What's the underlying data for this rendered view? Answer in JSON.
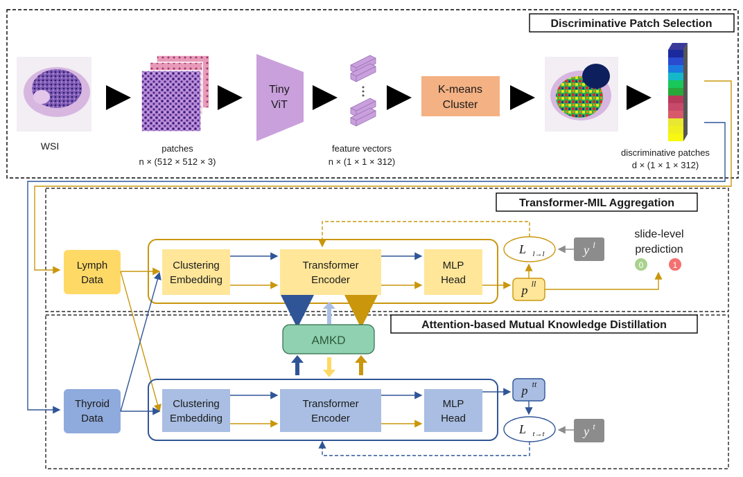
{
  "sections": {
    "patch_selection": "Discriminative Patch Selection",
    "transformer_mil": "Transformer-MIL Aggregation",
    "amkd_section": "Attention-based Mutual Knowledge Distillation"
  },
  "pipeline": {
    "wsi": "WSI",
    "patches": "patches",
    "patches_dim": "n × (512 × 512 × 3)",
    "tiny_vit_line1": "Tiny",
    "tiny_vit_line2": "ViT",
    "feature_vectors": "feature vectors",
    "feature_dim": "n × (1 × 1 × 312)",
    "kmeans_line1": "K-means",
    "kmeans_line2": "Cluster",
    "disc_patches": "discriminative patches",
    "disc_dim": "d × (1 × 1 × 312)"
  },
  "lymph": {
    "data_line1": "Lymph",
    "data_line2": "Data",
    "clustering_line1": "Clustering",
    "clustering_line2": "Embedding",
    "encoder_line1": "Transformer",
    "encoder_line2": "Encoder",
    "mlp_line1": "MLP",
    "mlp_line2": "Head",
    "pred": "p",
    "pred_sup": "ll",
    "loss": "L",
    "loss_sub": "l→l",
    "label": "y",
    "label_sup": "l"
  },
  "thyroid": {
    "data_line1": "Thyroid",
    "data_line2": "Data",
    "clustering_line1": "Clustering",
    "clustering_line2": "Embedding",
    "encoder_line1": "Transformer",
    "encoder_line2": "Encoder",
    "mlp_line1": "MLP",
    "mlp_line2": "Head",
    "pred": "p",
    "pred_sup": "tt",
    "loss": "L",
    "loss_sub": "t→t",
    "label": "y",
    "label_sup": "t"
  },
  "amkd": "AMKD",
  "prediction": {
    "line1": "slide-level",
    "line2": "prediction",
    "class0": "0",
    "class1": "1"
  },
  "colors": {
    "gold": "#C9960C",
    "blue": "#2F5597",
    "light_yellow": "#FFE699",
    "yellow": "#FFD966",
    "light_blue": "#A9BEE2",
    "blue_fill": "#8FAADC",
    "amkd_green": "#8FD1B0",
    "kmeans": "#F4B183",
    "vit": "#C9A0DC",
    "gray": "#8C8C8C"
  }
}
